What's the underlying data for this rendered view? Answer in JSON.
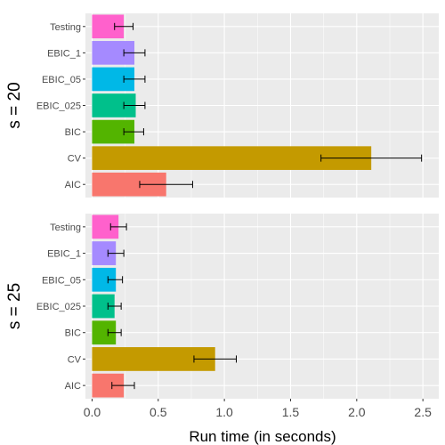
{
  "chart_data": {
    "type": "bar",
    "orientation": "horizontal",
    "xlabel": "Run time (in seconds)",
    "xlim": [
      -0.05,
      2.62
    ],
    "xticks": [
      0.0,
      0.5,
      1.0,
      1.5,
      2.0,
      2.5
    ],
    "xtick_labels": [
      "0.0",
      "0.5",
      "1.0",
      "1.5",
      "2.0",
      "2.5"
    ],
    "grid": true,
    "legend": "none",
    "categories": [
      "Testing",
      "EBIC_1",
      "EBIC_05",
      "EBIC_025",
      "BIC",
      "CV",
      "AIC"
    ],
    "colors": {
      "Testing": "#FF61CC",
      "EBIC_1": "#A58AFF",
      "EBIC_05": "#00B8E7",
      "EBIC_025": "#00C08B",
      "BIC": "#53B400",
      "CV": "#C49A00",
      "AIC": "#F8766D"
    },
    "panels": [
      {
        "label": "s = 20",
        "values": [
          0.24,
          0.32,
          0.32,
          0.33,
          0.32,
          2.11,
          0.56
        ],
        "error_low": [
          0.17,
          0.24,
          0.24,
          0.24,
          0.24,
          1.73,
          0.36
        ],
        "error_high": [
          0.31,
          0.4,
          0.4,
          0.4,
          0.39,
          2.49,
          0.76
        ]
      },
      {
        "label": "s = 25",
        "values": [
          0.2,
          0.18,
          0.18,
          0.17,
          0.18,
          0.93,
          0.24
        ],
        "error_low": [
          0.14,
          0.12,
          0.12,
          0.12,
          0.12,
          0.77,
          0.15
        ],
        "error_high": [
          0.26,
          0.24,
          0.23,
          0.22,
          0.22,
          1.09,
          0.32
        ]
      }
    ]
  }
}
